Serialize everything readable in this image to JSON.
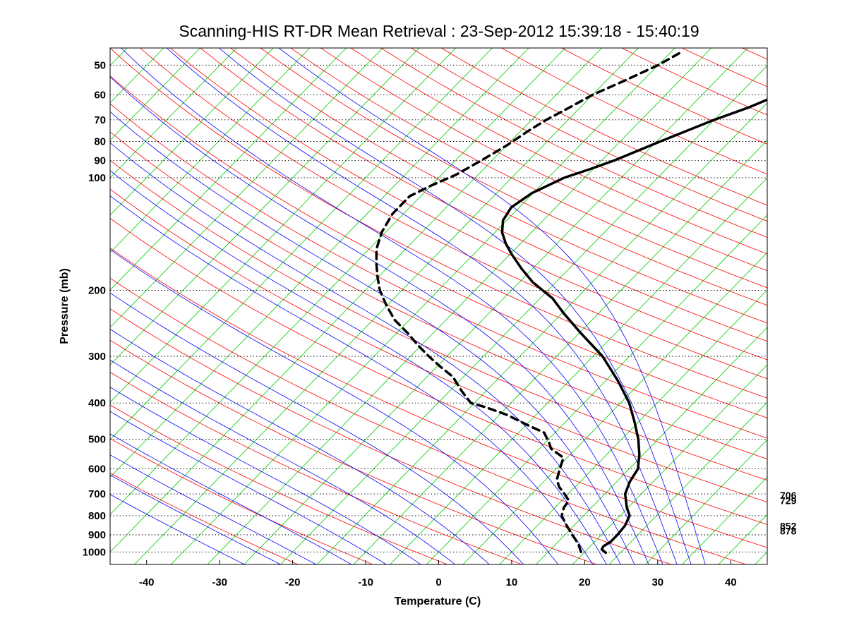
{
  "chart_data": {
    "type": "line",
    "title": "Scanning-HIS RT-DR Mean Retrieval : 23-Sep-2012 15:39:18 - 15:40:19",
    "xlabel": "Temperature (C)",
    "ylabel": "Pressure (mb)",
    "xlim": [
      -45,
      45
    ],
    "pressure_range_mb": [
      45,
      1080
    ],
    "x_ticks": [
      -40,
      -30,
      -20,
      -10,
      0,
      10,
      20,
      30,
      40
    ],
    "x_tick_labels": [
      "-40",
      "-30",
      "-20",
      "-10",
      "0",
      "10",
      "20",
      "30",
      "40"
    ],
    "y_ticks": [
      50,
      60,
      70,
      80,
      90,
      100,
      200,
      300,
      400,
      500,
      600,
      700,
      800,
      900,
      1000
    ],
    "y_tick_labels": [
      "50",
      "60",
      "70",
      "80",
      "90",
      "100",
      "200",
      "300",
      "400",
      "500",
      "600",
      "700",
      "800",
      "900",
      "1000"
    ],
    "skew_degrees_per_decade": 50,
    "side_annotations": [
      {
        "pressure": 706,
        "label": "706"
      },
      {
        "pressure": 729,
        "label": "729"
      },
      {
        "pressure": 852,
        "label": "852"
      },
      {
        "pressure": 878,
        "label": "878"
      }
    ],
    "background_lines": {
      "dry_adiabats_K": [
        250,
        260,
        270,
        280,
        290,
        300,
        310,
        320,
        330,
        340,
        350,
        360,
        370,
        380,
        390,
        400,
        410,
        420,
        430,
        440,
        450,
        460,
        470,
        480,
        490,
        500,
        520,
        540,
        560,
        580,
        600
      ],
      "moist_adiabats_C": [
        -30,
        -25,
        -20,
        -15,
        -10,
        -5,
        0,
        5,
        10,
        15,
        20,
        22,
        24,
        26,
        28,
        30,
        32,
        34,
        36
      ],
      "isotherm_start_C": -140,
      "isotherm_end_C": 50,
      "isotherm_step_C": 5
    },
    "series": [
      {
        "name": "Temperature",
        "style": "solid",
        "points": [
          {
            "p": 1005,
            "t": 23.0
          },
          {
            "p": 985,
            "t": 22.0
          },
          {
            "p": 965,
            "t": 21.8
          },
          {
            "p": 940,
            "t": 22.2
          },
          {
            "p": 900,
            "t": 22.2
          },
          {
            "p": 850,
            "t": 22.0
          },
          {
            "p": 800,
            "t": 21.3
          },
          {
            "p": 760,
            "t": 19.8
          },
          {
            "p": 700,
            "t": 17.8
          },
          {
            "p": 650,
            "t": 16.8
          },
          {
            "p": 600,
            "t": 16.2
          },
          {
            "p": 550,
            "t": 14.5
          },
          {
            "p": 500,
            "t": 12.3
          },
          {
            "p": 450,
            "t": 9.5
          },
          {
            "p": 400,
            "t": 6.2
          },
          {
            "p": 350,
            "t": 1.8
          },
          {
            "p": 300,
            "t": -3.7
          },
          {
            "p": 260,
            "t": -9.8
          },
          {
            "p": 230,
            "t": -14.8
          },
          {
            "p": 210,
            "t": -18.3
          },
          {
            "p": 200,
            "t": -20.7
          },
          {
            "p": 190,
            "t": -23.2
          },
          {
            "p": 175,
            "t": -26.5
          },
          {
            "p": 160,
            "t": -29.8
          },
          {
            "p": 150,
            "t": -32.0
          },
          {
            "p": 140,
            "t": -34.0
          },
          {
            "p": 130,
            "t": -35.5
          },
          {
            "p": 120,
            "t": -36.1
          },
          {
            "p": 110,
            "t": -35.2
          },
          {
            "p": 100,
            "t": -32.8
          },
          {
            "p": 95,
            "t": -30.5
          },
          {
            "p": 90,
            "t": -28.3
          },
          {
            "p": 80,
            "t": -24.5
          },
          {
            "p": 70,
            "t": -20.0
          },
          {
            "p": 65,
            "t": -17.0
          },
          {
            "p": 60,
            "t": -14.5
          },
          {
            "p": 55,
            "t": -11.0
          },
          {
            "p": 50,
            "t": -7.5
          },
          {
            "p": 45,
            "t": -5.0
          }
        ]
      },
      {
        "name": "Dewpoint",
        "style": "dashed",
        "points": [
          {
            "p": 1000,
            "t": 19.5
          },
          {
            "p": 950,
            "t": 18.0
          },
          {
            "p": 900,
            "t": 16.0
          },
          {
            "p": 850,
            "t": 14.0
          },
          {
            "p": 800,
            "t": 12.0
          },
          {
            "p": 760,
            "t": 11.2
          },
          {
            "p": 730,
            "t": 11.0
          },
          {
            "p": 700,
            "t": 9.5
          },
          {
            "p": 670,
            "t": 7.8
          },
          {
            "p": 640,
            "t": 6.5
          },
          {
            "p": 600,
            "t": 5.5
          },
          {
            "p": 560,
            "t": 4.5
          },
          {
            "p": 530,
            "t": 1.6
          },
          {
            "p": 510,
            "t": 0.5
          },
          {
            "p": 480,
            "t": -1.5
          },
          {
            "p": 460,
            "t": -4.5
          },
          {
            "p": 430,
            "t": -9.0
          },
          {
            "p": 410,
            "t": -13.0
          },
          {
            "p": 400,
            "t": -15.5
          },
          {
            "p": 370,
            "t": -18.5
          },
          {
            "p": 340,
            "t": -21.5
          },
          {
            "p": 320,
            "t": -24.5
          },
          {
            "p": 300,
            "t": -27.5
          },
          {
            "p": 280,
            "t": -30.5
          },
          {
            "p": 260,
            "t": -33.5
          },
          {
            "p": 240,
            "t": -37.0
          },
          {
            "p": 220,
            "t": -40.0
          },
          {
            "p": 200,
            "t": -43.0
          },
          {
            "p": 185,
            "t": -45.0
          },
          {
            "p": 170,
            "t": -47.0
          },
          {
            "p": 155,
            "t": -49.0
          },
          {
            "p": 140,
            "t": -50.5
          },
          {
            "p": 125,
            "t": -51.5
          },
          {
            "p": 112,
            "t": -51.5
          },
          {
            "p": 105,
            "t": -50.0
          },
          {
            "p": 98,
            "t": -48.0
          },
          {
            "p": 90,
            "t": -46.5
          },
          {
            "p": 82,
            "t": -45.0
          },
          {
            "p": 75,
            "t": -44.0
          },
          {
            "p": 70,
            "t": -43.0
          },
          {
            "p": 65,
            "t": -41.5
          },
          {
            "p": 60,
            "t": -40.0
          },
          {
            "p": 55,
            "t": -37.5
          },
          {
            "p": 50,
            "t": -35.0
          },
          {
            "p": 46,
            "t": -33.5
          }
        ]
      }
    ],
    "colors": {
      "dry_adiabats": "#ff0000",
      "moist_adiabats": "#0000ff",
      "isotherms": "#00cc00",
      "isobars": "#000000",
      "profiles": "#000000",
      "axes": "#000000"
    }
  }
}
